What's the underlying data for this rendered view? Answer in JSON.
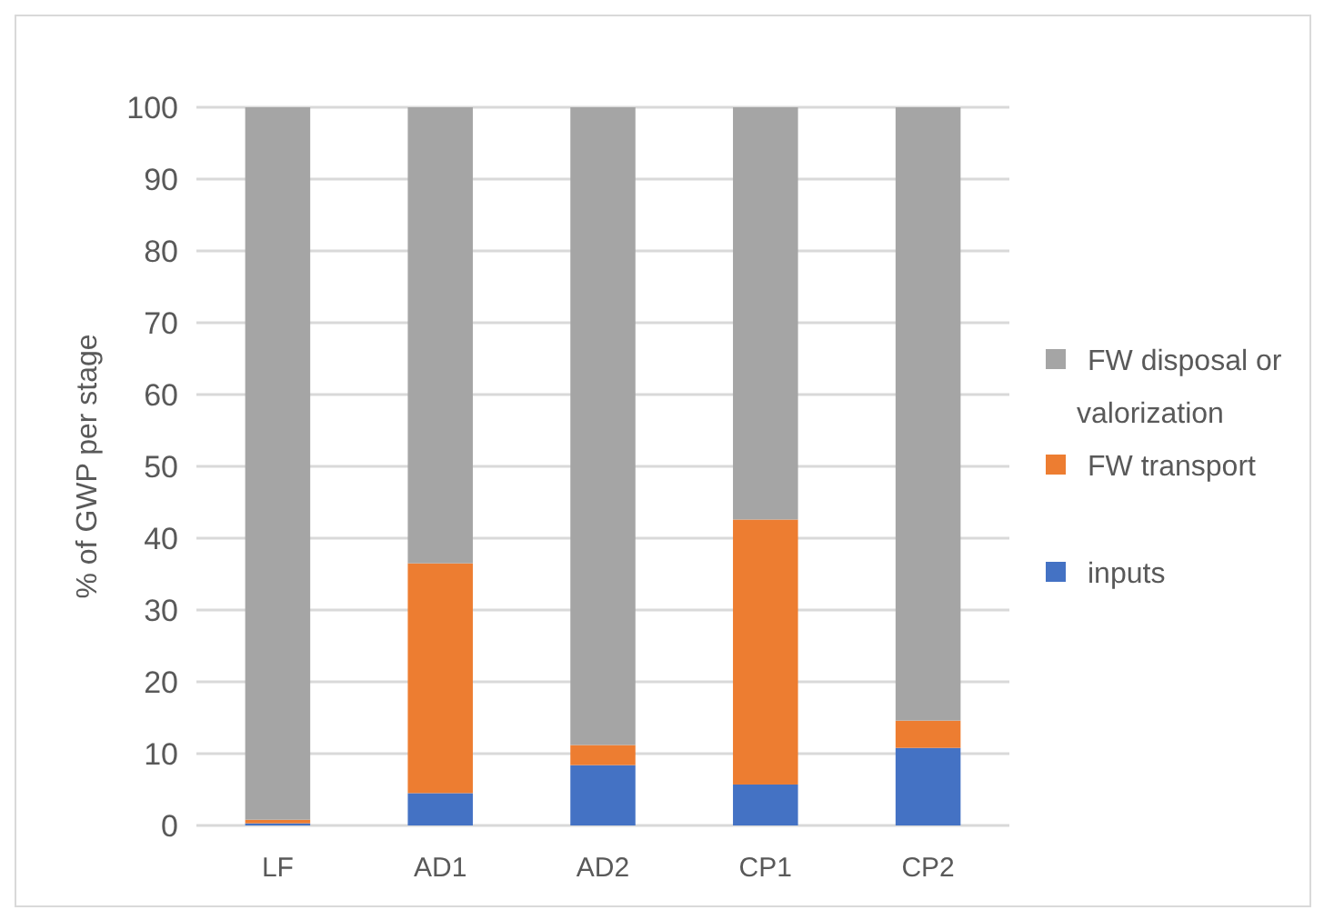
{
  "chart_data": {
    "type": "bar",
    "stacked": true,
    "ylabel": "% of GWP per stage",
    "categories": [
      "LF",
      "AD1",
      "AD2",
      "CP1",
      "CP2"
    ],
    "series": [
      {
        "name": "inputs",
        "color": "#4472c4",
        "values": [
          0.3,
          4.5,
          8.4,
          5.7,
          10.8
        ]
      },
      {
        "name": "FW transport",
        "color": "#ed7d31",
        "values": [
          0.5,
          32,
          2.8,
          36.9,
          3.8
        ]
      },
      {
        "name": "FW disposal or valorization",
        "color": "#a5a5a5",
        "values": [
          99.2,
          63.5,
          88.8,
          57.4,
          85.4
        ]
      }
    ],
    "ylim": [
      0,
      100
    ],
    "yticks": [
      0,
      10,
      20,
      30,
      40,
      50,
      60,
      70,
      80,
      90,
      100
    ],
    "grid": "y",
    "legend": "right"
  }
}
